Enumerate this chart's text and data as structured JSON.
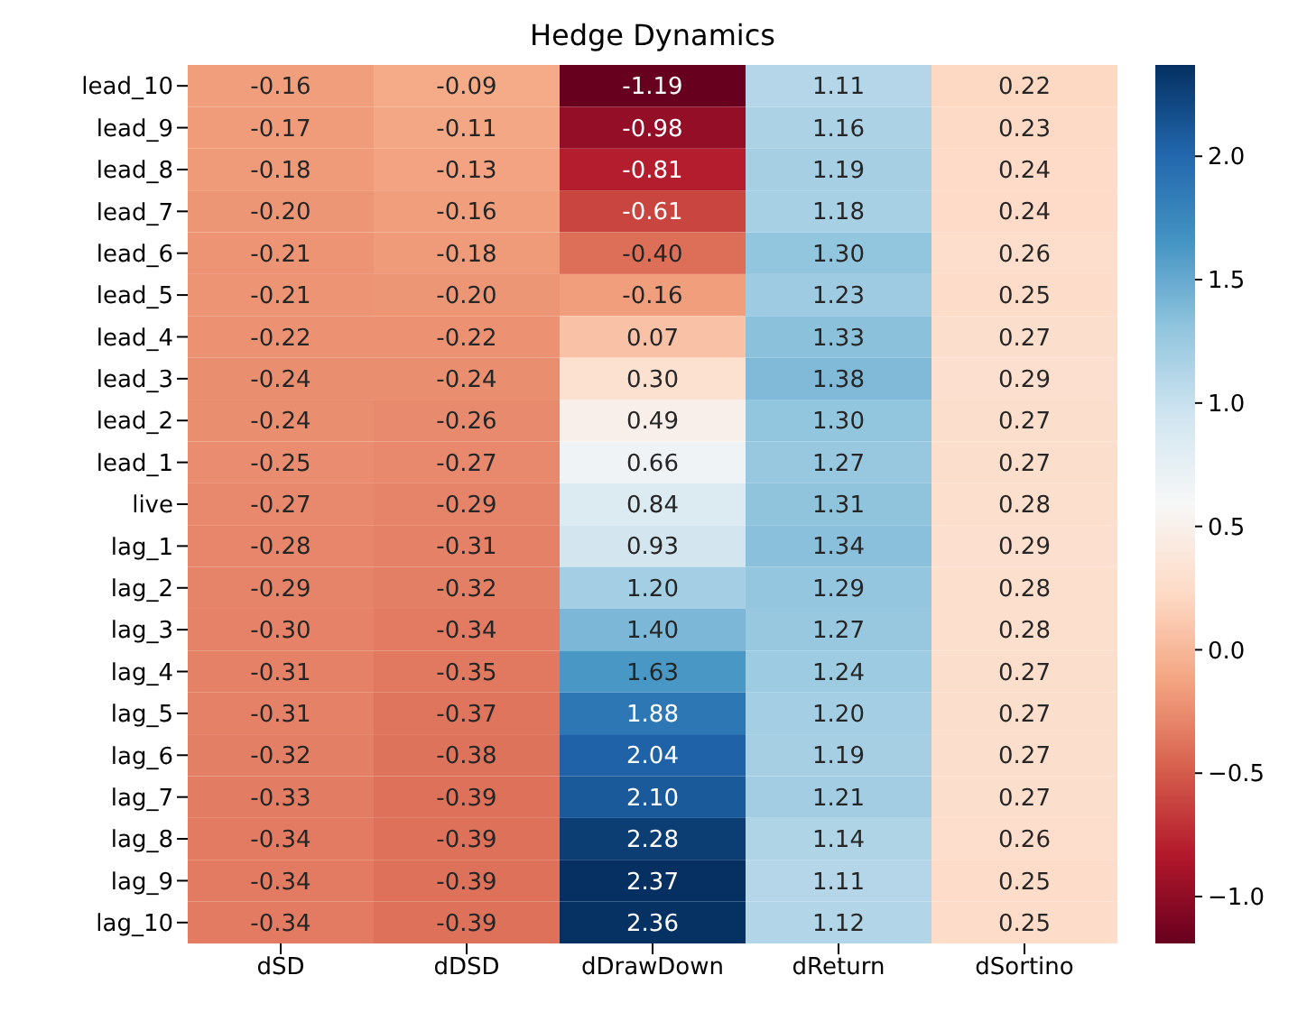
{
  "chart_data": {
    "type": "heatmap",
    "title": "Hedge Dynamics",
    "categories": [
      "dSD",
      "dDSD",
      "dDrawDown",
      "dReturn",
      "dSortino"
    ],
    "y_categories": [
      "lead_10",
      "lead_9",
      "lead_8",
      "lead_7",
      "lead_6",
      "lead_5",
      "lead_4",
      "lead_3",
      "lead_2",
      "lead_1",
      "live",
      "lag_1",
      "lag_2",
      "lag_3",
      "lag_4",
      "lag_5",
      "lag_6",
      "lag_7",
      "lag_8",
      "lag_9",
      "lag_10"
    ],
    "cells": [
      [
        -0.16,
        -0.09,
        -1.19,
        1.11,
        0.22
      ],
      [
        -0.17,
        -0.11,
        -0.98,
        1.16,
        0.23
      ],
      [
        -0.18,
        -0.13,
        -0.81,
        1.19,
        0.24
      ],
      [
        -0.2,
        -0.16,
        -0.61,
        1.18,
        0.24
      ],
      [
        -0.21,
        -0.18,
        -0.4,
        1.3,
        0.26
      ],
      [
        -0.21,
        -0.2,
        -0.16,
        1.23,
        0.25
      ],
      [
        -0.22,
        -0.22,
        0.07,
        1.33,
        0.27
      ],
      [
        -0.24,
        -0.24,
        0.3,
        1.38,
        0.29
      ],
      [
        -0.24,
        -0.26,
        0.49,
        1.3,
        0.27
      ],
      [
        -0.25,
        -0.27,
        0.66,
        1.27,
        0.27
      ],
      [
        -0.27,
        -0.29,
        0.84,
        1.31,
        0.28
      ],
      [
        -0.28,
        -0.31,
        0.93,
        1.34,
        0.29
      ],
      [
        -0.29,
        -0.32,
        1.2,
        1.29,
        0.28
      ],
      [
        -0.3,
        -0.34,
        1.4,
        1.27,
        0.28
      ],
      [
        -0.31,
        -0.35,
        1.63,
        1.24,
        0.27
      ],
      [
        -0.31,
        -0.37,
        1.88,
        1.2,
        0.27
      ],
      [
        -0.32,
        -0.38,
        2.04,
        1.19,
        0.27
      ],
      [
        -0.33,
        -0.39,
        2.1,
        1.21,
        0.27
      ],
      [
        -0.34,
        -0.39,
        2.28,
        1.14,
        0.26
      ],
      [
        -0.34,
        -0.39,
        2.37,
        1.11,
        0.25
      ],
      [
        -0.34,
        -0.39,
        2.36,
        1.12,
        0.25
      ]
    ],
    "cell_labels": [
      [
        "-0.16",
        "-0.09",
        "-1.19",
        "1.11",
        "0.22"
      ],
      [
        "-0.17",
        "-0.11",
        "-0.98",
        "1.16",
        "0.23"
      ],
      [
        "-0.18",
        "-0.13",
        "-0.81",
        "1.19",
        "0.24"
      ],
      [
        "-0.20",
        "-0.16",
        "-0.61",
        "1.18",
        "0.24"
      ],
      [
        "-0.21",
        "-0.18",
        "-0.40",
        "1.30",
        "0.26"
      ],
      [
        "-0.21",
        "-0.20",
        "-0.16",
        "1.23",
        "0.25"
      ],
      [
        "-0.22",
        "-0.22",
        "0.07",
        "1.33",
        "0.27"
      ],
      [
        "-0.24",
        "-0.24",
        "0.30",
        "1.38",
        "0.29"
      ],
      [
        "-0.24",
        "-0.26",
        "0.49",
        "1.30",
        "0.27"
      ],
      [
        "-0.25",
        "-0.27",
        "0.66",
        "1.27",
        "0.27"
      ],
      [
        "-0.27",
        "-0.29",
        "0.84",
        "1.31",
        "0.28"
      ],
      [
        "-0.28",
        "-0.31",
        "0.93",
        "1.34",
        "0.29"
      ],
      [
        "-0.29",
        "-0.32",
        "1.20",
        "1.29",
        "0.28"
      ],
      [
        "-0.30",
        "-0.34",
        "1.40",
        "1.27",
        "0.28"
      ],
      [
        "-0.31",
        "-0.35",
        "1.63",
        "1.24",
        "0.27"
      ],
      [
        "-0.31",
        "-0.37",
        "1.88",
        "1.20",
        "0.27"
      ],
      [
        "-0.32",
        "-0.38",
        "2.04",
        "1.19",
        "0.27"
      ],
      [
        "-0.33",
        "-0.39",
        "2.10",
        "1.21",
        "0.27"
      ],
      [
        "-0.34",
        "-0.39",
        "2.28",
        "1.14",
        "0.26"
      ],
      [
        "-0.34",
        "-0.39",
        "2.37",
        "1.11",
        "0.25"
      ],
      [
        "-0.34",
        "-0.39",
        "2.36",
        "1.12",
        "0.25"
      ]
    ],
    "data_labels": true,
    "clim": [
      -1.19,
      2.37
    ],
    "cticks": [
      {
        "value": -1,
        "label": "−1.0"
      },
      {
        "value": -0.5,
        "label": "−0.5"
      },
      {
        "value": 0,
        "label": "0.0"
      },
      {
        "value": 0.5,
        "label": "0.5"
      },
      {
        "value": 1,
        "label": "1.0"
      },
      {
        "value": 1.5,
        "label": "1.5"
      },
      {
        "value": 2,
        "label": "2.0"
      }
    ]
  }
}
